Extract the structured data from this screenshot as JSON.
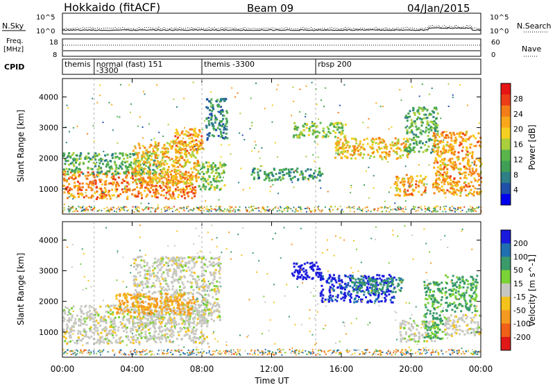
{
  "header": {
    "station": "Hokkaido (fitACF)",
    "beam": "Beam 09",
    "date": "04/Jan/2015"
  },
  "params": {
    "nsky_label": "N.Sky",
    "nsearch_label": "N.Search",
    "freq_label_1": "Freq.",
    "freq_label_2": "[MHz]",
    "nave_label": "Nave",
    "cpid_label": "CPID",
    "noise_ticks": [
      "10^5",
      "10^0"
    ],
    "freq_ticks": [
      "18",
      "8"
    ],
    "nave_ticks": [
      "60",
      "0"
    ]
  },
  "cpid_segments": [
    {
      "start": 0.0,
      "lines": [
        "themis"
      ]
    },
    {
      "start": 1.82,
      "lines": [
        "normal (fast) 151",
        "-3300"
      ]
    },
    {
      "start": 8.0,
      "lines": [
        "themis -3300"
      ]
    },
    {
      "start": 14.53,
      "lines": [
        "rbsp 200"
      ]
    }
  ],
  "chart_data": [
    {
      "type": "heatmap",
      "title": "",
      "xlabel": "Time UT",
      "ylabel": "Slant Range [km]",
      "xlim": [
        0,
        24
      ],
      "ylim": [
        180,
        4600
      ],
      "x_ticks": [
        "00:00",
        "04:00",
        "08:00",
        "12:00",
        "16:00",
        "20:00",
        "00:00"
      ],
      "y_ticks": [
        1000,
        2000,
        3000,
        4000
      ],
      "colorbar": {
        "label": "Power [dB]",
        "ticks": [
          4,
          8,
          12,
          16,
          20,
          24,
          28
        ],
        "range": [
          0,
          32
        ],
        "colors": [
          "#0000ee",
          "#1f4fa8",
          "#2e7f86",
          "#3fa055",
          "#5ab64c",
          "#a9cf3c",
          "#f5cf21",
          "#f9a71c",
          "#f37d19",
          "#ec3c18",
          "#e61515"
        ]
      },
      "regions": [
        {
          "t0": 0.0,
          "t1": 7.6,
          "r0": 700,
          "r1": 1600,
          "value": 24
        },
        {
          "t0": 0.0,
          "t1": 5.5,
          "r0": 1500,
          "r1": 2200,
          "value": 12
        },
        {
          "t0": 4.0,
          "t1": 7.8,
          "r0": 1200,
          "r1": 2600,
          "value": 20
        },
        {
          "t0": 6.3,
          "t1": 8.0,
          "r0": 2200,
          "r1": 3000,
          "value": 22
        },
        {
          "t0": 7.7,
          "t1": 9.3,
          "r0": 1000,
          "r1": 1900,
          "value": 14
        },
        {
          "t0": 8.2,
          "t1": 9.4,
          "r0": 2600,
          "r1": 4000,
          "value": 8
        },
        {
          "t0": 10.8,
          "t1": 14.9,
          "r0": 1300,
          "r1": 1700,
          "value": 10
        },
        {
          "t0": 13.2,
          "t1": 16.2,
          "r0": 2700,
          "r1": 3200,
          "value": 14
        },
        {
          "t0": 15.6,
          "t1": 19.8,
          "r0": 2000,
          "r1": 2700,
          "value": 20
        },
        {
          "t0": 19.0,
          "t1": 20.8,
          "r0": 800,
          "r1": 1500,
          "value": 22
        },
        {
          "t0": 19.6,
          "t1": 21.5,
          "r0": 2200,
          "r1": 3700,
          "value": 12
        },
        {
          "t0": 21.2,
          "t1": 24.0,
          "r0": 800,
          "r1": 2900,
          "value": 22
        }
      ]
    },
    {
      "type": "heatmap",
      "title": "",
      "xlabel": "Time UT",
      "ylabel": "Slant Range [km]",
      "xlim": [
        0,
        24
      ],
      "ylim": [
        180,
        4600
      ],
      "x_ticks": [
        "00:00",
        "04:00",
        "08:00",
        "12:00",
        "16:00",
        "20:00",
        "00:00"
      ],
      "y_ticks": [
        1000,
        2000,
        3000,
        4000
      ],
      "colorbar": {
        "label": "Velocity [m s^-1]",
        "ticks": [
          200,
          100,
          50,
          15,
          -15,
          -50,
          -100,
          -200
        ],
        "colors": [
          "#1a1adc",
          "#2070b0",
          "#3a9a6a",
          "#7ad236",
          "#c8c8c2",
          "#f5c21c",
          "#f59a20",
          "#f06018",
          "#e01818"
        ]
      },
      "regions": [
        {
          "t0": 0.0,
          "t1": 8.3,
          "r0": 650,
          "r1": 1900,
          "value": 0
        },
        {
          "t0": 4.0,
          "t1": 9.0,
          "r0": 1300,
          "r1": 3500,
          "value": 0
        },
        {
          "t0": 3.0,
          "t1": 7.5,
          "r0": 1600,
          "r1": 2300,
          "value": -60
        },
        {
          "t0": 13.1,
          "t1": 14.8,
          "r0": 2700,
          "r1": 3300,
          "value": 200
        },
        {
          "t0": 14.7,
          "t1": 19.0,
          "r0": 2000,
          "r1": 2900,
          "value": 160
        },
        {
          "t0": 16.5,
          "t1": 19.5,
          "r0": 2300,
          "r1": 2800,
          "value": 60
        },
        {
          "t0": 19.3,
          "t1": 21.5,
          "r0": 700,
          "r1": 1400,
          "value": 0
        },
        {
          "t0": 20.7,
          "t1": 21.8,
          "r0": 800,
          "r1": 2700,
          "value": 40
        },
        {
          "t0": 21.8,
          "t1": 24.0,
          "r0": 900,
          "r1": 1600,
          "value": 0
        },
        {
          "t0": 21.9,
          "t1": 23.8,
          "r0": 1700,
          "r1": 2900,
          "value": 40
        }
      ]
    }
  ]
}
